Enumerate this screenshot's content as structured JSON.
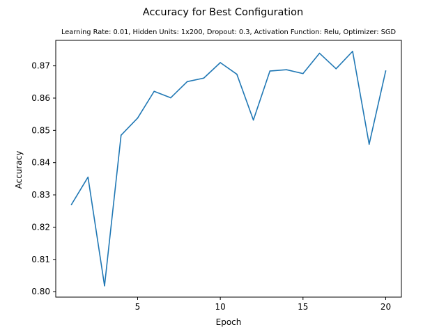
{
  "chart_data": {
    "type": "line",
    "title": "Accuracy for Best Configuration",
    "subtitle": "Learning Rate: 0.01, Hidden Units: 1x200, Dropout: 0.3, Activation Function: Relu, Optimizer: SGD",
    "xlabel": "Epoch",
    "ylabel": "Accuracy",
    "xlim": [
      0.05,
      20.95
    ],
    "ylim": [
      0.7983,
      0.8779
    ],
    "xticks": [
      5,
      10,
      15,
      20
    ],
    "yticks": [
      0.8,
      0.81,
      0.82,
      0.83,
      0.84,
      0.85,
      0.86,
      0.87
    ],
    "ytick_labels": [
      "0.80",
      "0.81",
      "0.82",
      "0.83",
      "0.84",
      "0.85",
      "0.86",
      "0.87"
    ],
    "grid": false,
    "line_color": "#1f77b4",
    "series": [
      {
        "x": [
          1,
          2,
          3,
          4,
          5,
          6,
          7,
          8,
          9,
          10,
          11,
          12,
          13,
          14,
          15,
          16,
          17,
          18,
          19,
          20
        ],
        "values": [
          0.827,
          0.8355,
          0.8018,
          0.8485,
          0.8538,
          0.8621,
          0.8601,
          0.8651,
          0.8662,
          0.871,
          0.8674,
          0.8532,
          0.8684,
          0.8688,
          0.8676,
          0.8739,
          0.8691,
          0.8745,
          0.8457,
          0.8684
        ]
      }
    ]
  }
}
